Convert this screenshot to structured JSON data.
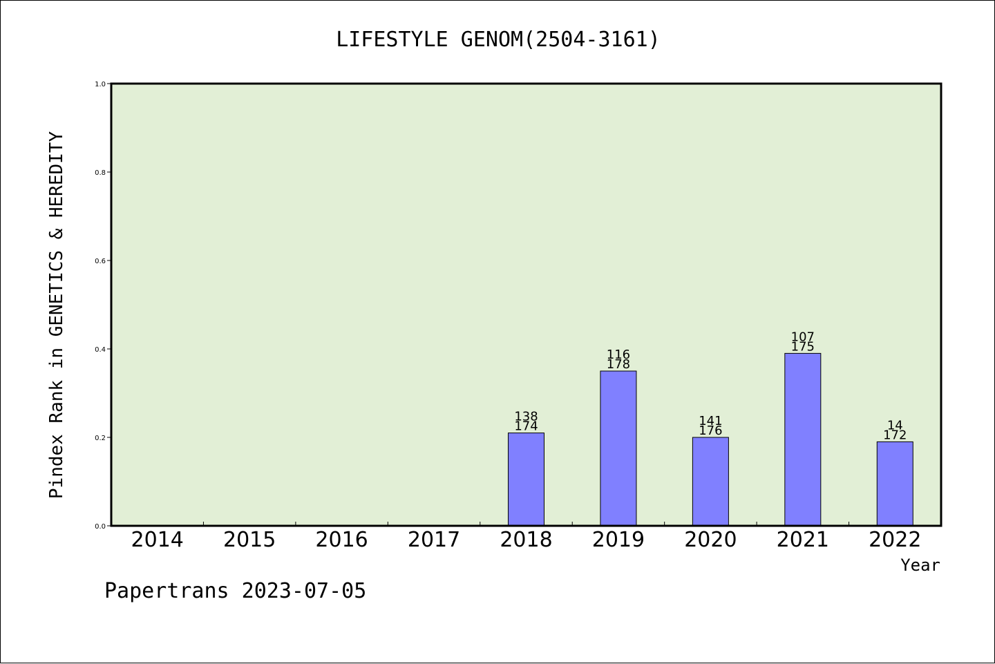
{
  "chart_data": {
    "type": "bar",
    "title": "LIFESTYLE GENOM(2504-3161)",
    "ylabel": "Pindex Rank in GENETICS & HEREDITY",
    "xlabel": "Year",
    "footer": "Papertrans 2023-07-05",
    "ylim": [
      0,
      1.0
    ],
    "yticks": [
      "0.0",
      "0.2",
      "0.4",
      "0.6",
      "0.8",
      "1.0"
    ],
    "categories": [
      "2014",
      "2015",
      "2016",
      "2017",
      "2018",
      "2019",
      "2020",
      "2021",
      "2022"
    ],
    "values": [
      null,
      null,
      null,
      null,
      0.21,
      0.35,
      0.2,
      0.39,
      0.19
    ],
    "labels_top": [
      "",
      "",
      "",
      "",
      "138",
      "116",
      "141",
      "107",
      "14"
    ],
    "labels_bottom": [
      "",
      "",
      "",
      "",
      "174",
      "178",
      "176",
      "175",
      "172"
    ],
    "colors": {
      "plot_bg": "#e2efd6",
      "bar_fill": "#8080ff",
      "bar_stroke": "#000000"
    },
    "grid": false,
    "legend": "none"
  }
}
